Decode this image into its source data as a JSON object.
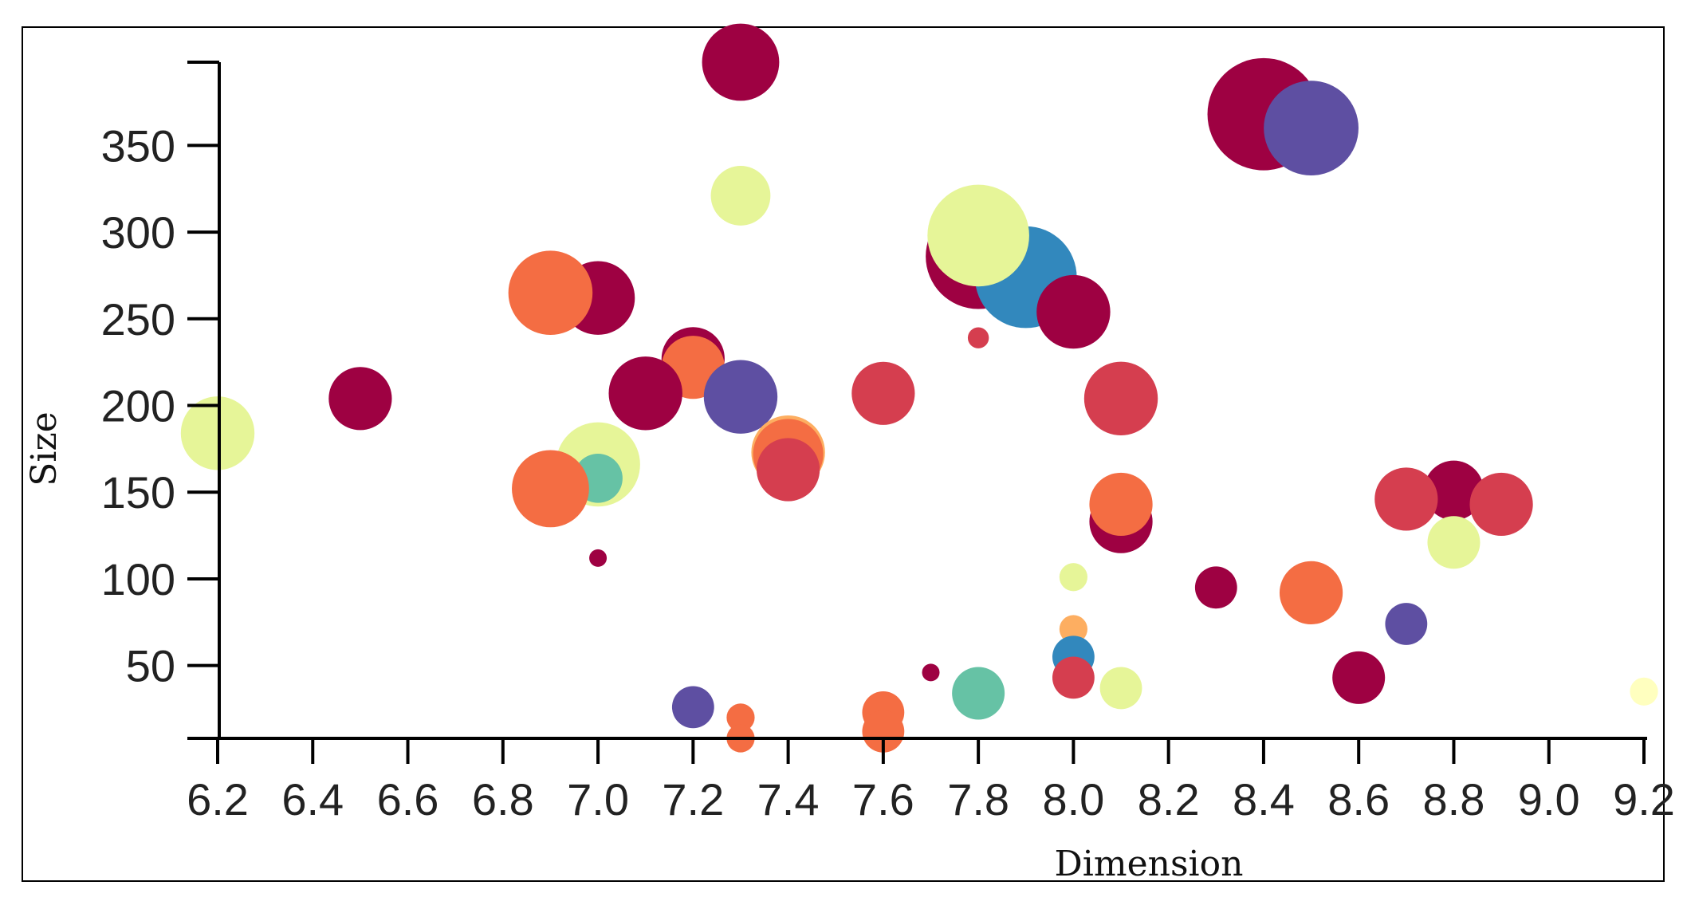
{
  "chart_data": {
    "type": "scatter",
    "xlabel": "Dimension",
    "ylabel": "Size",
    "xlim": [
      6.2,
      9.2
    ],
    "ylim": [
      8,
      398
    ],
    "x_ticks": [
      "6.2",
      "6.4",
      "6.6",
      "6.8",
      "7.0",
      "7.2",
      "7.4",
      "7.6",
      "7.8",
      "8.0",
      "8.2",
      "8.4",
      "8.6",
      "8.8",
      "9.0",
      "9.2"
    ],
    "y_ticks": [
      "50",
      "100",
      "150",
      "200",
      "250",
      "300",
      "350"
    ],
    "grid": false,
    "legend": "none",
    "palette": {
      "crimson": "#9e0142",
      "red": "#d53e4f",
      "orange": "#f46d43",
      "light_orange": "#fdae61",
      "yellow": "#fee08b",
      "pale_yellow": "#ffffbf",
      "lime": "#e6f598",
      "green": "#abdda4",
      "teal": "#66c2a5",
      "blue": "#3288bd",
      "purple": "#5e4fa2"
    },
    "points": [
      {
        "x": 7.3,
        "y": 398,
        "r": 22,
        "color": "#9e0142"
      },
      {
        "x": 8.4,
        "y": 368,
        "r": 32,
        "color": "#9e0142"
      },
      {
        "x": 8.5,
        "y": 360,
        "r": 27,
        "color": "#5e4fa2"
      },
      {
        "x": 7.3,
        "y": 321,
        "r": 17,
        "color": "#e6f598"
      },
      {
        "x": 7.8,
        "y": 286,
        "r": 30,
        "color": "#9e0142"
      },
      {
        "x": 7.9,
        "y": 274,
        "r": 29,
        "color": "#3288bd"
      },
      {
        "x": 7.8,
        "y": 298,
        "r": 29,
        "color": "#e6f598"
      },
      {
        "x": 8.0,
        "y": 254,
        "r": 21,
        "color": "#9e0142"
      },
      {
        "x": 7.0,
        "y": 262,
        "r": 21,
        "color": "#9e0142"
      },
      {
        "x": 6.9,
        "y": 265,
        "r": 24,
        "color": "#f46d43"
      },
      {
        "x": 7.8,
        "y": 239,
        "r": 6,
        "color": "#d53e4f"
      },
      {
        "x": 7.2,
        "y": 227,
        "r": 18,
        "color": "#9e0142"
      },
      {
        "x": 7.2,
        "y": 222,
        "r": 18,
        "color": "#f46d43"
      },
      {
        "x": 7.1,
        "y": 207,
        "r": 21,
        "color": "#9e0142"
      },
      {
        "x": 7.3,
        "y": 205,
        "r": 21,
        "color": "#5e4fa2"
      },
      {
        "x": 6.5,
        "y": 204,
        "r": 18,
        "color": "#9e0142"
      },
      {
        "x": 7.6,
        "y": 207,
        "r": 18,
        "color": "#d53e4f"
      },
      {
        "x": 8.1,
        "y": 204,
        "r": 21,
        "color": "#d53e4f"
      },
      {
        "x": 6.2,
        "y": 184,
        "r": 21,
        "color": "#e6f598"
      },
      {
        "x": 7.4,
        "y": 173,
        "r": 21,
        "color": "#fdae61"
      },
      {
        "x": 7.4,
        "y": 172,
        "r": 20,
        "color": "#f46d43"
      },
      {
        "x": 7.4,
        "y": 163,
        "r": 18,
        "color": "#d53e4f"
      },
      {
        "x": 7.0,
        "y": 166,
        "r": 24,
        "color": "#e6f598"
      },
      {
        "x": 7.0,
        "y": 158,
        "r": 14,
        "color": "#66c2a5"
      },
      {
        "x": 6.9,
        "y": 152,
        "r": 22,
        "color": "#f46d43"
      },
      {
        "x": 8.8,
        "y": 151,
        "r": 17,
        "color": "#9e0142"
      },
      {
        "x": 8.7,
        "y": 146,
        "r": 18,
        "color": "#d53e4f"
      },
      {
        "x": 8.9,
        "y": 143,
        "r": 18,
        "color": "#d53e4f"
      },
      {
        "x": 8.1,
        "y": 133,
        "r": 18,
        "color": "#9e0142"
      },
      {
        "x": 8.1,
        "y": 143,
        "r": 18,
        "color": "#f46d43"
      },
      {
        "x": 8.8,
        "y": 121,
        "r": 15,
        "color": "#e6f598"
      },
      {
        "x": 7.0,
        "y": 112,
        "r": 5,
        "color": "#9e0142"
      },
      {
        "x": 8.0,
        "y": 101,
        "r": 8,
        "color": "#e6f598"
      },
      {
        "x": 8.3,
        "y": 95,
        "r": 12,
        "color": "#9e0142"
      },
      {
        "x": 8.5,
        "y": 92,
        "r": 18,
        "color": "#f46d43"
      },
      {
        "x": 8.7,
        "y": 74,
        "r": 12,
        "color": "#5e4fa2"
      },
      {
        "x": 8.0,
        "y": 71,
        "r": 8,
        "color": "#fdae61"
      },
      {
        "x": 8.0,
        "y": 55,
        "r": 12,
        "color": "#3288bd"
      },
      {
        "x": 8.0,
        "y": 43,
        "r": 12,
        "color": "#d53e4f"
      },
      {
        "x": 8.6,
        "y": 43,
        "r": 15,
        "color": "#9e0142"
      },
      {
        "x": 7.7,
        "y": 46,
        "r": 5,
        "color": "#9e0142"
      },
      {
        "x": 8.1,
        "y": 37,
        "r": 12,
        "color": "#e6f598"
      },
      {
        "x": 7.8,
        "y": 34,
        "r": 15,
        "color": "#66c2a5"
      },
      {
        "x": 9.2,
        "y": 35,
        "r": 8,
        "color": "#ffffbf"
      },
      {
        "x": 7.2,
        "y": 26,
        "r": 12,
        "color": "#5e4fa2"
      },
      {
        "x": 7.3,
        "y": 20,
        "r": 8,
        "color": "#f46d43"
      },
      {
        "x": 7.3,
        "y": 8,
        "r": 8,
        "color": "#f46d43"
      },
      {
        "x": 7.6,
        "y": 23,
        "r": 12,
        "color": "#f46d43"
      },
      {
        "x": 7.6,
        "y": 12,
        "r": 12,
        "color": "#f46d43"
      }
    ]
  }
}
